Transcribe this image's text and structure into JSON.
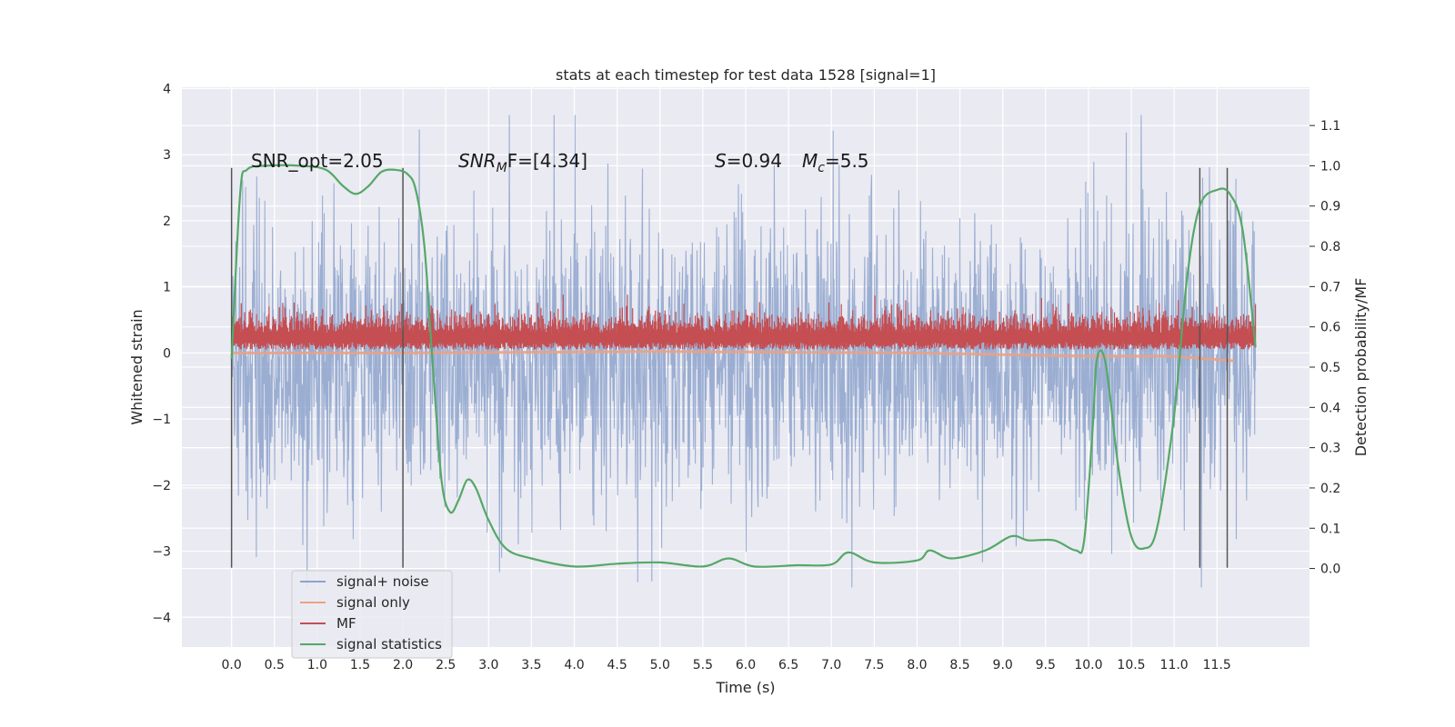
{
  "chart_data": {
    "type": "line",
    "title": "stats at each timestep for test data 1528 [signal=1]",
    "xlabel": "Time (s)",
    "ylabel": "Whitened strain",
    "ylabel_right": "Detection probability/MF",
    "xlim": [
      -0.58,
      12.58
    ],
    "ylim": [
      -4.45,
      4.02
    ],
    "ylim_right": [
      -0.195,
      1.195
    ],
    "x_ticks": [
      "0.0",
      "0.5",
      "1.0",
      "1.5",
      "2.0",
      "2.5",
      "3.0",
      "3.5",
      "4.0",
      "4.5",
      "5.0",
      "5.5",
      "6.0",
      "6.5",
      "7.0",
      "7.5",
      "8.0",
      "8.5",
      "9.0",
      "9.5",
      "10.0",
      "10.5",
      "11.0",
      "11.5"
    ],
    "y_ticks": [
      "4",
      "3",
      "2",
      "1",
      "0",
      "−1",
      "−2",
      "−3",
      "−4"
    ],
    "y_ticks_right": [
      "1.1",
      "1.0",
      "0.9",
      "0.8",
      "0.7",
      "0.6",
      "0.5",
      "0.4",
      "0.3",
      "0.2",
      "0.1",
      "0.0"
    ],
    "grid": true,
    "legend_position": "lower-left",
    "annotations": [
      {
        "label": "SNR_opt=2.05"
      },
      {
        "label": "SNR",
        "sub": "M",
        "suffix": "F=[4.34]"
      },
      {
        "label": "S",
        "suffix": "=0.94"
      },
      {
        "label": "M",
        "sub": "c",
        "suffix": "=5.5"
      }
    ],
    "vlines_x": [
      0.0,
      2.0,
      11.3,
      11.62
    ],
    "vline_range": [
      -3.25,
      2.8
    ],
    "series": [
      {
        "name": "signal+ noise",
        "color": "#8da3cc",
        "kind": "noise",
        "t_range": [
          0.0,
          11.95
        ],
        "envelope": {
          "mean": -0.1,
          "sd": 1.0,
          "min": -3.55,
          "max": 3.6
        }
      },
      {
        "name": "signal only",
        "color": "#e9a285",
        "kind": "template",
        "points": [
          [
            0.0,
            0.0
          ],
          [
            2.0,
            0.0
          ],
          [
            5.0,
            0.02
          ],
          [
            8.0,
            0.0
          ],
          [
            10.0,
            -0.05
          ],
          [
            11.0,
            -0.05
          ],
          [
            11.7,
            -0.12
          ]
        ]
      },
      {
        "name": "MF",
        "color": "#c44e52",
        "kind": "band",
        "t_range": [
          0.0,
          11.95
        ],
        "envelope": {
          "base": 0.05,
          "mean": 0.3,
          "max": 1.0
        }
      },
      {
        "name": "signal statistics",
        "color": "#55a868",
        "axis": "right",
        "points": [
          [
            0.0,
            0.52
          ],
          [
            0.1,
            0.93
          ],
          [
            0.18,
            0.99
          ],
          [
            0.4,
            1.0
          ],
          [
            0.8,
            1.0
          ],
          [
            1.1,
            0.99
          ],
          [
            1.3,
            0.95
          ],
          [
            1.45,
            0.93
          ],
          [
            1.6,
            0.95
          ],
          [
            1.75,
            0.985
          ],
          [
            1.9,
            0.99
          ],
          [
            2.05,
            0.98
          ],
          [
            2.15,
            0.94
          ],
          [
            2.25,
            0.8
          ],
          [
            2.35,
            0.5
          ],
          [
            2.45,
            0.22
          ],
          [
            2.55,
            0.14
          ],
          [
            2.65,
            0.17
          ],
          [
            2.75,
            0.22
          ],
          [
            2.85,
            0.2
          ],
          [
            3.0,
            0.12
          ],
          [
            3.2,
            0.05
          ],
          [
            3.5,
            0.025
          ],
          [
            4.0,
            0.005
          ],
          [
            4.5,
            0.012
          ],
          [
            5.0,
            0.015
          ],
          [
            5.5,
            0.005
          ],
          [
            5.8,
            0.025
          ],
          [
            6.1,
            0.005
          ],
          [
            6.6,
            0.008
          ],
          [
            7.0,
            0.01
          ],
          [
            7.2,
            0.04
          ],
          [
            7.5,
            0.015
          ],
          [
            8.0,
            0.02
          ],
          [
            8.15,
            0.045
          ],
          [
            8.4,
            0.025
          ],
          [
            8.8,
            0.045
          ],
          [
            9.1,
            0.08
          ],
          [
            9.3,
            0.07
          ],
          [
            9.6,
            0.07
          ],
          [
            9.85,
            0.045
          ],
          [
            9.95,
            0.07
          ],
          [
            10.05,
            0.35
          ],
          [
            10.1,
            0.52
          ],
          [
            10.2,
            0.51
          ],
          [
            10.35,
            0.25
          ],
          [
            10.5,
            0.08
          ],
          [
            10.65,
            0.05
          ],
          [
            10.8,
            0.1
          ],
          [
            11.0,
            0.38
          ],
          [
            11.15,
            0.72
          ],
          [
            11.3,
            0.9
          ],
          [
            11.5,
            0.94
          ],
          [
            11.65,
            0.93
          ],
          [
            11.8,
            0.84
          ],
          [
            11.95,
            0.55
          ]
        ]
      }
    ]
  }
}
